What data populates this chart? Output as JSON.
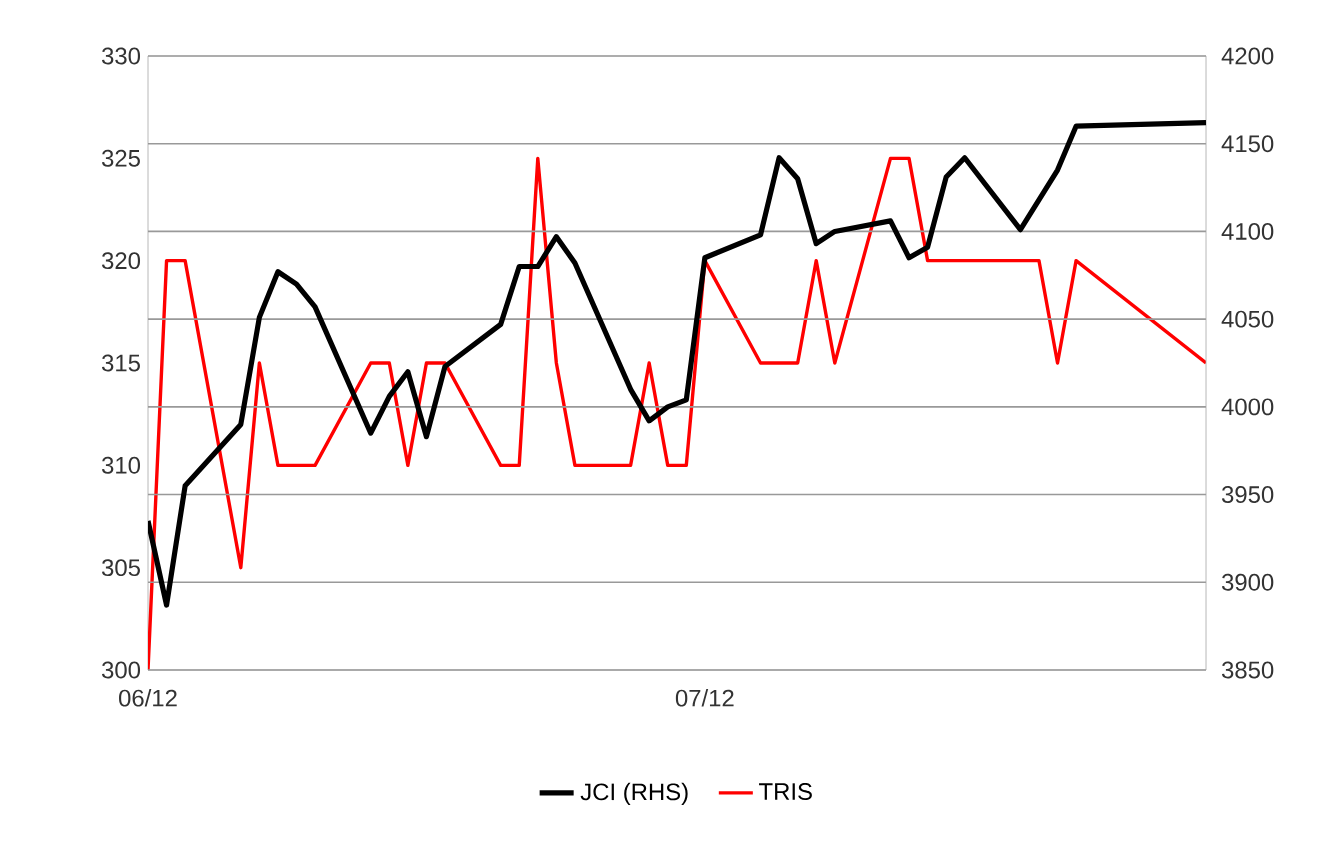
{
  "chart_data": {
    "type": "line",
    "xlim": [
      "2012-06-01",
      "2012-07-28"
    ],
    "xticks": [
      {
        "value": "2012-06-01",
        "label": "06/12"
      },
      {
        "value": "2012-07-01",
        "label": "07/12"
      }
    ],
    "ylim": [
      300,
      330
    ],
    "yticks": [
      300,
      305,
      310,
      315,
      320,
      325,
      330
    ],
    "y2lim": [
      3850,
      4200
    ],
    "y2ticks": [
      3850,
      3900,
      3950,
      4000,
      4050,
      4100,
      4150,
      4200
    ],
    "grid": "y2",
    "legend": "bottom",
    "series": [
      {
        "name": "JCI (RHS)",
        "color": "#000000",
        "axis": "y2",
        "x": [
          "2012-06-01",
          "2012-06-02",
          "2012-06-03",
          "2012-06-06",
          "2012-06-07",
          "2012-06-08",
          "2012-06-09",
          "2012-06-10",
          "2012-06-13",
          "2012-06-14",
          "2012-06-15",
          "2012-06-16",
          "2012-06-17",
          "2012-06-20",
          "2012-06-21",
          "2012-06-22",
          "2012-06-23",
          "2012-06-24",
          "2012-06-27",
          "2012-06-28",
          "2012-06-29",
          "2012-06-30",
          "2012-07-01",
          "2012-07-04",
          "2012-07-05",
          "2012-07-06",
          "2012-07-07",
          "2012-07-08",
          "2012-07-11",
          "2012-07-12",
          "2012-07-13",
          "2012-07-14",
          "2012-07-15",
          "2012-07-18",
          "2012-07-20",
          "2012-07-21",
          "2012-07-28"
        ],
        "values": [
          3935,
          3887,
          3955,
          3990,
          4051,
          4077,
          4070,
          4057,
          3985,
          4006,
          4020,
          3983,
          4023,
          4047,
          4080,
          4080,
          4097,
          4082,
          4010,
          3992,
          4000,
          4004,
          4085,
          4098,
          4142,
          4130,
          4093,
          4100,
          4106,
          4085,
          4091,
          4131,
          4142,
          4101,
          4135,
          4160,
          4162
        ]
      },
      {
        "name": "TRIS",
        "color": "#ff0000",
        "x": [
          "2012-06-01",
          "2012-06-02",
          "2012-06-03",
          "2012-06-06",
          "2012-06-07",
          "2012-06-08",
          "2012-06-10",
          "2012-06-13",
          "2012-06-14",
          "2012-06-15",
          "2012-06-16",
          "2012-06-17",
          "2012-06-20",
          "2012-06-21",
          "2012-06-22",
          "2012-06-23",
          "2012-06-24",
          "2012-06-27",
          "2012-06-28",
          "2012-06-29",
          "2012-06-30",
          "2012-07-01",
          "2012-07-04",
          "2012-07-06",
          "2012-07-07",
          "2012-07-08",
          "2012-07-11",
          "2012-07-12",
          "2012-07-13",
          "2012-07-19",
          "2012-07-20",
          "2012-07-21",
          "2012-07-28"
        ],
        "values": [
          300,
          320,
          320,
          305,
          315,
          310,
          310,
          315,
          315,
          310,
          315,
          315,
          310,
          310,
          325,
          315,
          310,
          310,
          315,
          310,
          310,
          320,
          315,
          315,
          320,
          315,
          325,
          325,
          320,
          320,
          315,
          320,
          315
        ]
      }
    ]
  }
}
